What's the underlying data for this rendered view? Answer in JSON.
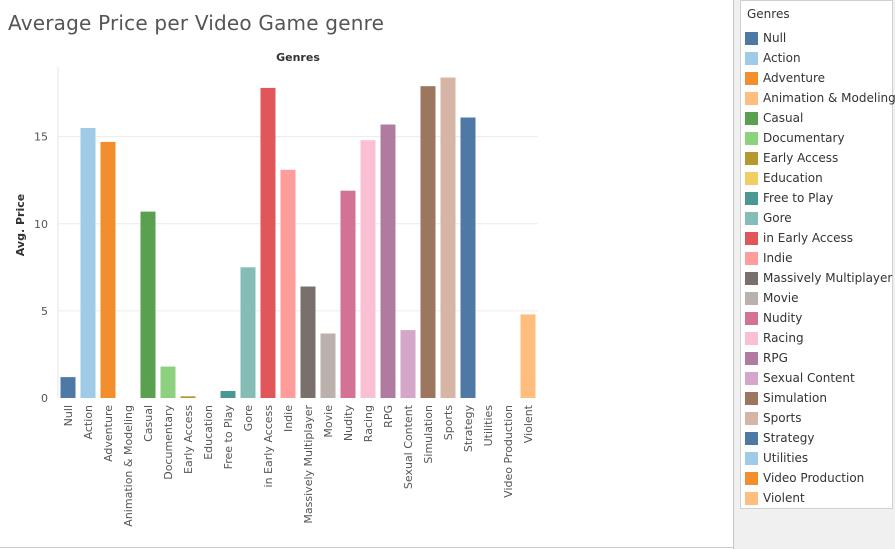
{
  "title": "Average Price per Video Game genre",
  "chart_data": {
    "type": "bar",
    "title": "Average Price per Video Game genre",
    "column_header": "Genres",
    "xlabel": "",
    "ylabel": "Avg. Price",
    "ylim": [
      0,
      19
    ],
    "yticks": [
      0,
      5,
      10,
      15
    ],
    "grid": true,
    "legend_placement": "right",
    "categories": [
      "Null",
      "Action",
      "Adventure",
      "Animation & Modeling",
      "Casual",
      "Documentary",
      "Early Access",
      "Education",
      "Free to Play",
      "Gore",
      "in Early Access",
      "Indie",
      "Massively Multiplayer",
      "Movie",
      "Nudity",
      "Racing",
      "RPG",
      "Sexual Content",
      "Simulation",
      "Sports",
      "Strategy",
      "Utilities",
      "Video Production",
      "Violent"
    ],
    "values": [
      1.2,
      15.5,
      14.7,
      0,
      10.7,
      1.8,
      0.1,
      0,
      0.4,
      7.5,
      17.8,
      13.1,
      6.4,
      3.7,
      11.9,
      14.8,
      15.7,
      3.9,
      17.9,
      18.4,
      16.1,
      0,
      0,
      4.8
    ],
    "colors": [
      "#4e79a7",
      "#a0cbe8",
      "#f28e2b",
      "#ffbe7d",
      "#59a14f",
      "#8cd17d",
      "#b6992d",
      "#f1ce63",
      "#499894",
      "#86bcb6",
      "#e15759",
      "#ff9d9a",
      "#79706e",
      "#bab0ac",
      "#d37295",
      "#fabfd2",
      "#b07aa1",
      "#d4a6c8",
      "#9d7660",
      "#d7b5a6",
      "#4e79a7",
      "#a0cbe8",
      "#f28e2b",
      "#ffbe7d"
    ]
  },
  "legend": {
    "title": "Genres",
    "items": [
      {
        "label": "Null",
        "color": "#4e79a7"
      },
      {
        "label": "Action",
        "color": "#a0cbe8"
      },
      {
        "label": "Adventure",
        "color": "#f28e2b"
      },
      {
        "label": "Animation & Modeling",
        "color": "#ffbe7d"
      },
      {
        "label": "Casual",
        "color": "#59a14f"
      },
      {
        "label": "Documentary",
        "color": "#8cd17d"
      },
      {
        "label": "Early Access",
        "color": "#b6992d"
      },
      {
        "label": "Education",
        "color": "#f1ce63"
      },
      {
        "label": "Free to Play",
        "color": "#499894"
      },
      {
        "label": "Gore",
        "color": "#86bcb6"
      },
      {
        "label": "in Early Access",
        "color": "#e15759"
      },
      {
        "label": "Indie",
        "color": "#ff9d9a"
      },
      {
        "label": "Massively Multiplayer",
        "color": "#79706e"
      },
      {
        "label": "Movie",
        "color": "#bab0ac"
      },
      {
        "label": "Nudity",
        "color": "#d37295"
      },
      {
        "label": "Racing",
        "color": "#fabfd2"
      },
      {
        "label": "RPG",
        "color": "#b07aa1"
      },
      {
        "label": "Sexual Content",
        "color": "#d4a6c8"
      },
      {
        "label": "Simulation",
        "color": "#9d7660"
      },
      {
        "label": "Sports",
        "color": "#d7b5a6"
      },
      {
        "label": "Strategy",
        "color": "#4e79a7"
      },
      {
        "label": "Utilities",
        "color": "#a0cbe8"
      },
      {
        "label": "Video Production",
        "color": "#f28e2b"
      },
      {
        "label": "Violent",
        "color": "#ffbe7d"
      }
    ]
  }
}
